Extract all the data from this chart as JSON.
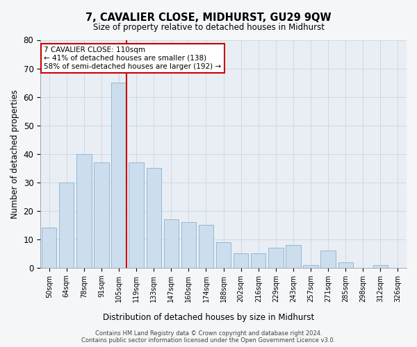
{
  "title": "7, CAVALIER CLOSE, MIDHURST, GU29 9QW",
  "subtitle": "Size of property relative to detached houses in Midhurst",
  "xlabel": "Distribution of detached houses by size in Midhurst",
  "ylabel": "Number of detached properties",
  "bar_color": "#ccdded",
  "bar_edge_color": "#92b8d4",
  "grid_color": "#d0d8e0",
  "background_color": "#e8eef4",
  "fig_color": "#f4f6f8",
  "categories": [
    "50sqm",
    "64sqm",
    "78sqm",
    "91sqm",
    "105sqm",
    "119sqm",
    "133sqm",
    "147sqm",
    "160sqm",
    "174sqm",
    "188sqm",
    "202sqm",
    "216sqm",
    "229sqm",
    "243sqm",
    "257sqm",
    "271sqm",
    "285sqm",
    "298sqm",
    "312sqm",
    "326sqm"
  ],
  "values": [
    14,
    30,
    40,
    37,
    65,
    37,
    35,
    17,
    16,
    15,
    9,
    5,
    5,
    7,
    8,
    1,
    6,
    2,
    0,
    1,
    0
  ],
  "ylim": [
    0,
    80
  ],
  "yticks": [
    0,
    10,
    20,
    30,
    40,
    50,
    60,
    70,
    80
  ],
  "vline_index": 4,
  "vline_color": "#cc0000",
  "annotation_line1": "7 CAVALIER CLOSE: 110sqm",
  "annotation_line2": "← 41% of detached houses are smaller (138)",
  "annotation_line3": "58% of semi-detached houses are larger (192) →",
  "annotation_box_color": "#ffffff",
  "annotation_box_edge_color": "#cc0000",
  "footer_line1": "Contains HM Land Registry data © Crown copyright and database right 2024.",
  "footer_line2": "Contains public sector information licensed under the Open Government Licence v3.0.",
  "figsize": [
    6.0,
    5.0
  ],
  "dpi": 100
}
